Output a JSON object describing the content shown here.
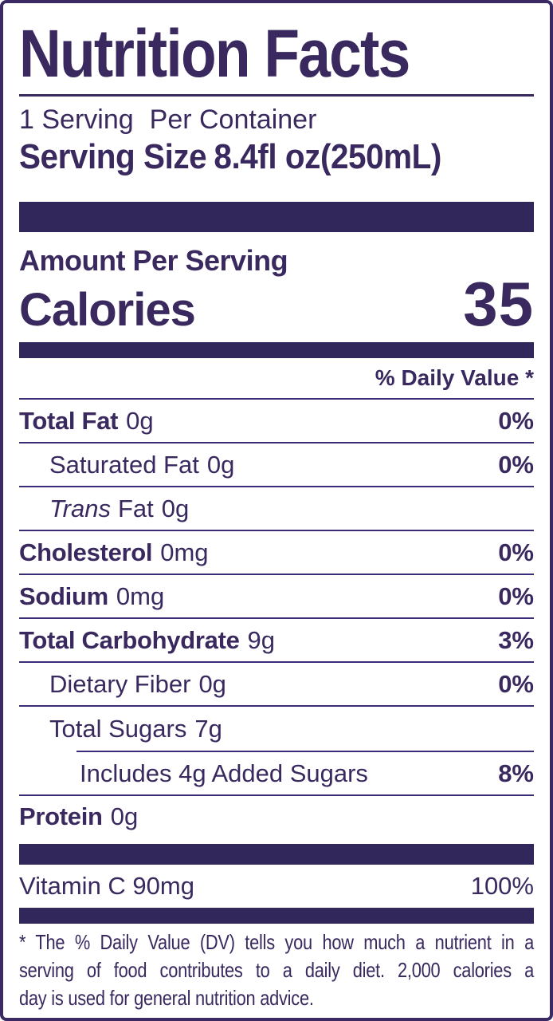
{
  "label": {
    "title": "Nutrition Facts",
    "servings_text_1": "1 Serving",
    "servings_text_2": "Per Container",
    "serving_size_label": "Serving Size",
    "serving_size_value": "8.4fl oz(250mL)",
    "amount_per_serving": "Amount Per Serving",
    "calories_label": "Calories",
    "calories_value": "35",
    "daily_value_header": "% Daily Value *",
    "rows": [
      {
        "name": "Total Fat",
        "amount": "0g",
        "pct": "0%"
      },
      {
        "name": "Saturated Fat",
        "amount": "0g",
        "pct": "0%"
      },
      {
        "name_italic": "Trans",
        "name": "Fat",
        "amount": "0g",
        "pct": ""
      },
      {
        "name": "Cholesterol",
        "amount": "0mg",
        "pct": "0%"
      },
      {
        "name": "Sodium",
        "amount": "0mg",
        "pct": "0%"
      },
      {
        "name": "Total Carbohydrate",
        "amount": "9g",
        "pct": "3%"
      },
      {
        "name": "Dietary Fiber",
        "amount": "0g",
        "pct": "0%"
      },
      {
        "name": "Total Sugars",
        "amount": "7g",
        "pct": ""
      },
      {
        "name": "Includes 4g Added Sugars",
        "amount": "",
        "pct": "8%"
      },
      {
        "name": "Protein",
        "amount": "0g",
        "pct": ""
      }
    ],
    "vitamin": {
      "name": "Vitamin C 90mg",
      "pct": "100%"
    },
    "footnote_lines": [
      "* The % Daily Value (DV) tells you how much a nutrient in a",
      "serving of food contributes to a daily diet. 2,000 calories a",
      "day is used for general nutrition advice."
    ]
  },
  "colors": {
    "ink": "#39295f",
    "bar": "#32275a",
    "divider": "#3c2b77",
    "border": "#3a2963",
    "background": "#ffffff"
  }
}
